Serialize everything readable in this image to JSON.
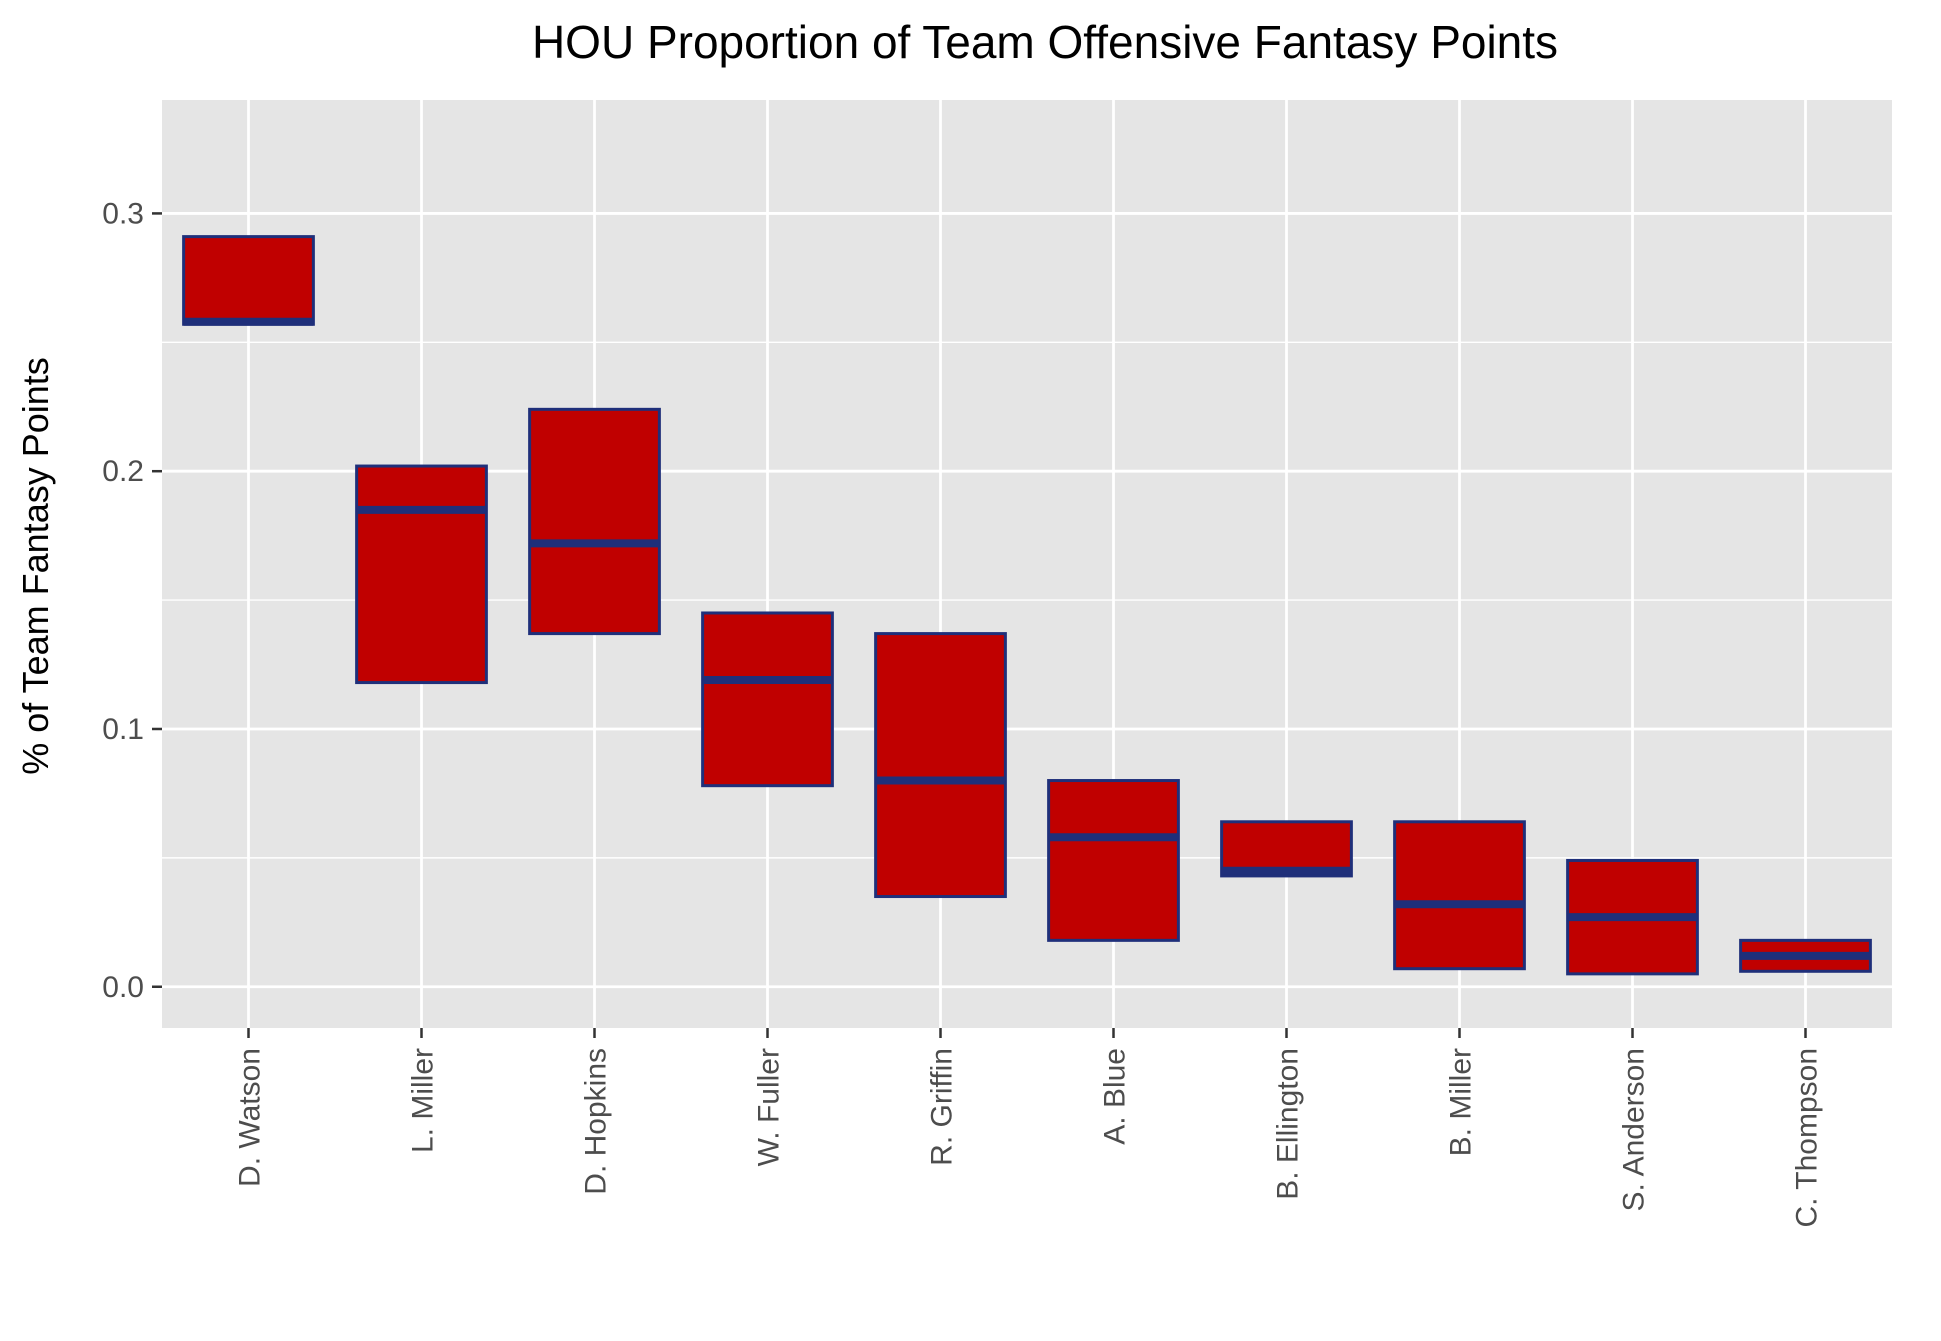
{
  "chart_data": {
    "type": "crossbar",
    "title": "HOU Proportion of Team Offensive Fantasy Points",
    "xlabel": "",
    "ylabel": "% of Team Fantasy Points",
    "ylim": [
      -0.016,
      0.344
    ],
    "yticks": [
      0.0,
      0.1,
      0.2,
      0.3
    ],
    "ytick_labels": [
      "0.0",
      "0.1",
      "0.2",
      "0.3"
    ],
    "grid": true,
    "legend": "none",
    "colors": {
      "panel_background": "#e5e5e5",
      "grid_major": "#ffffff",
      "grid_minor": "#f2f2f2",
      "box_fill": "#c00000",
      "box_outline": "#1f2f7a",
      "tick_mark": "#333333"
    },
    "categories": [
      "D. Watson",
      "L. Miller",
      "D. Hopkins",
      "W. Fuller",
      "R. Griffin",
      "A. Blue",
      "B. Ellington",
      "B. Miller",
      "S. Anderson",
      "C. Thompson"
    ],
    "series": [
      {
        "low": [
          0.257,
          0.118,
          0.137,
          0.078,
          0.035,
          0.018,
          0.043,
          0.007,
          0.005,
          0.006
        ],
        "middle": [
          0.258,
          0.185,
          0.172,
          0.119,
          0.08,
          0.058,
          0.045,
          0.032,
          0.027,
          0.012
        ],
        "high": [
          0.291,
          0.202,
          0.224,
          0.145,
          0.137,
          0.08,
          0.064,
          0.064,
          0.049,
          0.018
        ]
      }
    ]
  }
}
